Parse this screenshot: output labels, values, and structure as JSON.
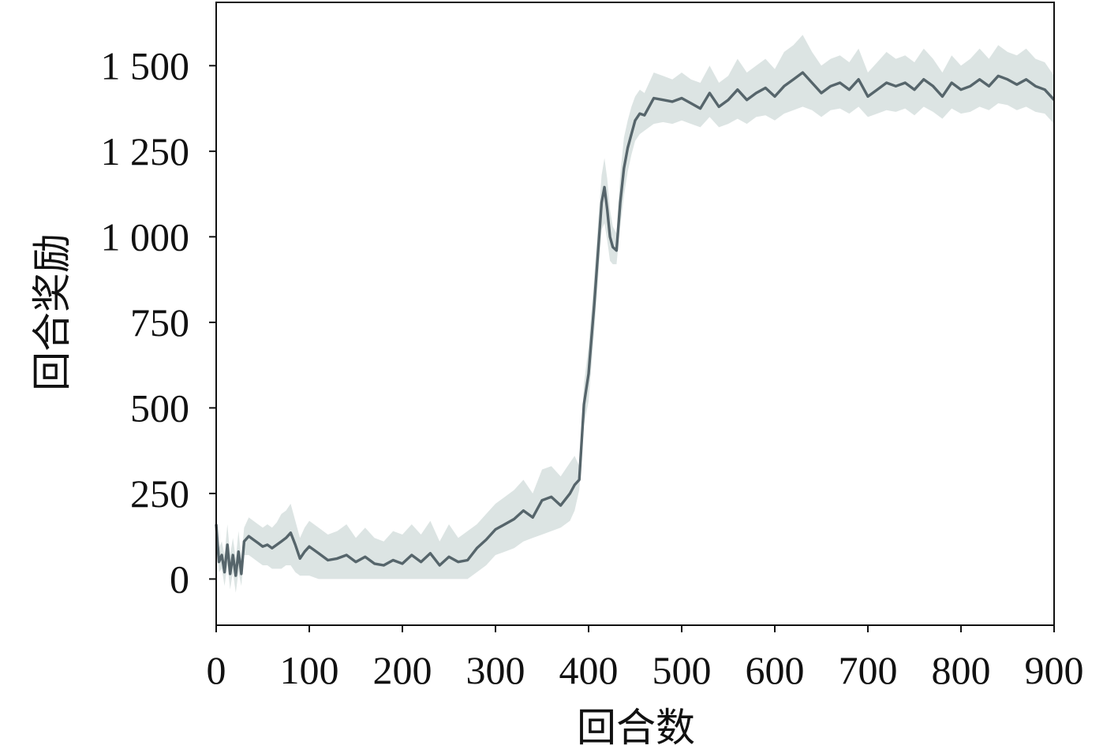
{
  "chart_data": {
    "type": "line",
    "title": "",
    "xlabel": "回合数",
    "ylabel": "回合奖励",
    "xlim": [
      0,
      900
    ],
    "ylim": [
      -135,
      1685
    ],
    "x_ticks": [
      0,
      100,
      200,
      300,
      400,
      500,
      600,
      700,
      800,
      900
    ],
    "x_tick_labels": [
      "0",
      "100",
      "200",
      "300",
      "400",
      "500",
      "600",
      "700",
      "800",
      "900"
    ],
    "y_ticks": [
      0,
      250,
      500,
      750,
      1000,
      1250,
      1500
    ],
    "y_tick_labels": [
      "0",
      "250",
      "500",
      "750",
      "1 000",
      "1 250",
      "1 500"
    ],
    "grid": false,
    "legend": "none",
    "colors": {
      "line": "#56656b",
      "band": "#dce4e3",
      "axis": "#111111"
    },
    "series": [
      {
        "x": [
          0,
          3,
          6,
          9,
          12,
          15,
          18,
          21,
          24,
          27,
          30,
          35,
          40,
          45,
          50,
          55,
          60,
          65,
          70,
          75,
          80,
          85,
          90,
          95,
          100,
          110,
          120,
          130,
          140,
          150,
          160,
          170,
          180,
          190,
          200,
          210,
          220,
          230,
          240,
          250,
          260,
          270,
          280,
          290,
          300,
          310,
          320,
          330,
          340,
          350,
          360,
          370,
          380,
          385,
          390,
          395,
          400,
          403,
          406,
          410,
          414,
          417,
          420,
          423,
          426,
          430,
          434,
          438,
          442,
          446,
          450,
          455,
          460,
          470,
          480,
          490,
          500,
          510,
          520,
          530,
          540,
          550,
          560,
          570,
          580,
          590,
          600,
          610,
          620,
          630,
          640,
          650,
          660,
          670,
          680,
          690,
          700,
          710,
          720,
          730,
          740,
          750,
          760,
          770,
          780,
          790,
          800,
          810,
          820,
          830,
          840,
          850,
          860,
          870,
          880,
          890,
          900
        ],
        "y": [
          160,
          50,
          70,
          20,
          100,
          15,
          70,
          10,
          80,
          15,
          110,
          125,
          115,
          105,
          95,
          100,
          90,
          100,
          110,
          120,
          135,
          100,
          60,
          80,
          95,
          75,
          55,
          60,
          70,
          50,
          65,
          45,
          40,
          55,
          45,
          70,
          50,
          75,
          40,
          65,
          50,
          55,
          90,
          115,
          145,
          160,
          175,
          200,
          180,
          230,
          240,
          215,
          250,
          275,
          290,
          510,
          600,
          700,
          800,
          950,
          1100,
          1145,
          1080,
          1000,
          970,
          960,
          1100,
          1200,
          1260,
          1300,
          1340,
          1360,
          1355,
          1405,
          1400,
          1395,
          1405,
          1390,
          1375,
          1420,
          1380,
          1400,
          1430,
          1400,
          1420,
          1435,
          1410,
          1440,
          1460,
          1480,
          1450,
          1420,
          1440,
          1450,
          1430,
          1460,
          1410,
          1430,
          1450,
          1440,
          1450,
          1430,
          1460,
          1440,
          1410,
          1450,
          1430,
          1440,
          1460,
          1440,
          1470,
          1460,
          1445,
          1460,
          1440,
          1430,
          1400
        ],
        "lower": [
          130,
          20,
          30,
          -20,
          40,
          -30,
          20,
          -40,
          20,
          -20,
          70,
          70,
          60,
          50,
          40,
          40,
          30,
          30,
          30,
          40,
          40,
          20,
          10,
          10,
          10,
          0,
          0,
          0,
          0,
          0,
          0,
          0,
          0,
          0,
          0,
          0,
          0,
          0,
          0,
          0,
          0,
          0,
          20,
          40,
          70,
          80,
          90,
          110,
          120,
          130,
          140,
          150,
          170,
          200,
          260,
          450,
          520,
          620,
          720,
          870,
          1020,
          1040,
          990,
          930,
          920,
          920,
          1030,
          1120,
          1190,
          1240,
          1280,
          1300,
          1310,
          1330,
          1335,
          1330,
          1340,
          1330,
          1320,
          1350,
          1320,
          1330,
          1345,
          1330,
          1350,
          1355,
          1340,
          1360,
          1370,
          1380,
          1370,
          1350,
          1370,
          1375,
          1360,
          1380,
          1350,
          1360,
          1370,
          1365,
          1375,
          1355,
          1380,
          1365,
          1345,
          1375,
          1360,
          1365,
          1380,
          1370,
          1390,
          1385,
          1370,
          1380,
          1365,
          1360,
          1330
        ],
        "upper": [
          190,
          90,
          110,
          70,
          160,
          70,
          120,
          60,
          140,
          60,
          150,
          180,
          170,
          160,
          150,
          160,
          150,
          165,
          190,
          200,
          220,
          170,
          120,
          150,
          170,
          150,
          130,
          140,
          160,
          120,
          150,
          120,
          110,
          140,
          130,
          160,
          130,
          170,
          110,
          160,
          120,
          140,
          160,
          190,
          220,
          240,
          260,
          290,
          250,
          320,
          330,
          300,
          340,
          360,
          330,
          570,
          680,
          780,
          880,
          1030,
          1180,
          1230,
          1170,
          1080,
          1030,
          1010,
          1180,
          1290,
          1340,
          1380,
          1410,
          1430,
          1420,
          1480,
          1470,
          1460,
          1480,
          1460,
          1450,
          1500,
          1450,
          1470,
          1520,
          1480,
          1500,
          1520,
          1490,
          1540,
          1560,
          1590,
          1540,
          1500,
          1520,
          1530,
          1510,
          1550,
          1480,
          1510,
          1540,
          1520,
          1530,
          1510,
          1550,
          1520,
          1480,
          1530,
          1500,
          1520,
          1550,
          1520,
          1560,
          1540,
          1530,
          1550,
          1520,
          1510,
          1470
        ]
      }
    ]
  }
}
